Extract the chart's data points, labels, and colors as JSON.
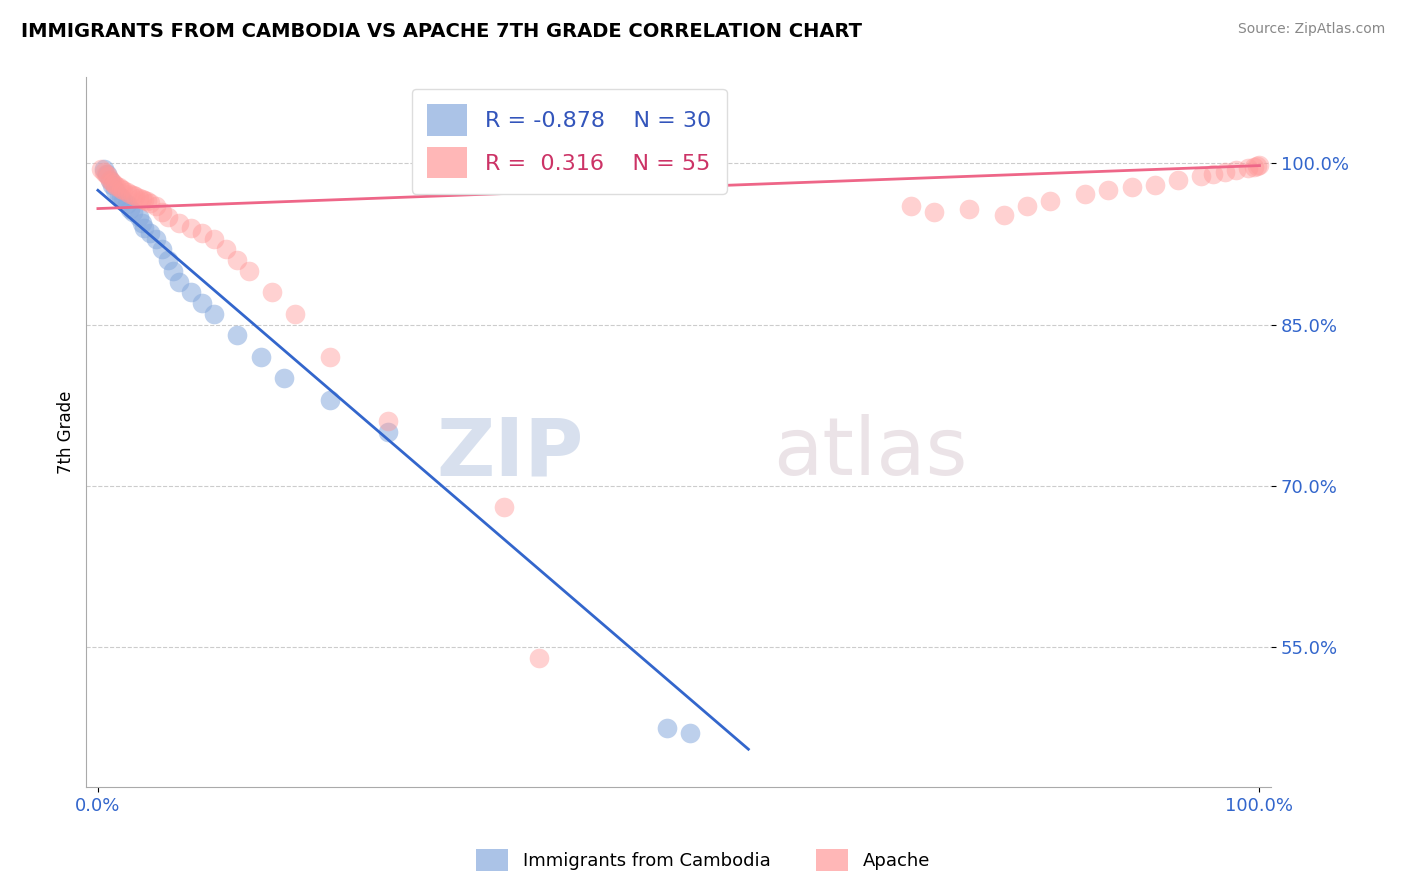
{
  "title": "IMMIGRANTS FROM CAMBODIA VS APACHE 7TH GRADE CORRELATION CHART",
  "source_text": "Source: ZipAtlas.com",
  "ylabel": "7th Grade",
  "xlim": [
    -0.01,
    1.01
  ],
  "ylim": [
    0.42,
    1.08
  ],
  "yticks": [
    0.55,
    0.7,
    0.85,
    1.0
  ],
  "ytick_labels": [
    "55.0%",
    "70.0%",
    "85.0%",
    "100.0%"
  ],
  "xticks": [
    0.0,
    1.0
  ],
  "xtick_labels": [
    "0.0%",
    "100.0%"
  ],
  "blue_label": "Immigrants from Cambodia",
  "pink_label": "Apache",
  "blue_R": -0.878,
  "blue_N": 30,
  "pink_R": 0.316,
  "pink_N": 55,
  "blue_color": "#88AADD",
  "pink_color": "#FF9999",
  "blue_line_color": "#3366CC",
  "pink_line_color": "#EE6688",
  "watermark_zip": "ZIP",
  "watermark_atlas": "atlas",
  "blue_scatter_x": [
    0.005,
    0.008,
    0.01,
    0.012,
    0.015,
    0.018,
    0.02,
    0.022,
    0.025,
    0.028,
    0.03,
    0.035,
    0.038,
    0.04,
    0.045,
    0.05,
    0.055,
    0.06,
    0.065,
    0.07,
    0.08,
    0.09,
    0.1,
    0.12,
    0.14,
    0.16,
    0.2,
    0.25,
    0.49,
    0.51
  ],
  "blue_scatter_y": [
    0.995,
    0.99,
    0.985,
    0.98,
    0.975,
    0.97,
    0.968,
    0.965,
    0.962,
    0.958,
    0.955,
    0.95,
    0.945,
    0.94,
    0.935,
    0.93,
    0.92,
    0.91,
    0.9,
    0.89,
    0.88,
    0.87,
    0.86,
    0.84,
    0.82,
    0.8,
    0.78,
    0.75,
    0.475,
    0.47
  ],
  "pink_scatter_x": [
    0.003,
    0.005,
    0.007,
    0.009,
    0.01,
    0.012,
    0.014,
    0.016,
    0.018,
    0.02,
    0.022,
    0.025,
    0.028,
    0.03,
    0.032,
    0.035,
    0.038,
    0.04,
    0.042,
    0.045,
    0.05,
    0.055,
    0.06,
    0.07,
    0.08,
    0.09,
    0.1,
    0.11,
    0.12,
    0.13,
    0.15,
    0.17,
    0.2,
    0.25,
    0.35,
    0.38,
    0.7,
    0.72,
    0.75,
    0.78,
    0.8,
    0.82,
    0.85,
    0.87,
    0.89,
    0.91,
    0.93,
    0.95,
    0.96,
    0.97,
    0.98,
    0.99,
    0.995,
    0.998,
    1.0
  ],
  "pink_scatter_y": [
    0.995,
    0.992,
    0.99,
    0.988,
    0.985,
    0.983,
    0.981,
    0.979,
    0.978,
    0.976,
    0.975,
    0.973,
    0.972,
    0.971,
    0.97,
    0.968,
    0.967,
    0.966,
    0.965,
    0.963,
    0.96,
    0.955,
    0.95,
    0.945,
    0.94,
    0.935,
    0.93,
    0.92,
    0.91,
    0.9,
    0.88,
    0.86,
    0.82,
    0.76,
    0.68,
    0.54,
    0.96,
    0.955,
    0.958,
    0.952,
    0.96,
    0.965,
    0.972,
    0.975,
    0.978,
    0.98,
    0.985,
    0.988,
    0.99,
    0.992,
    0.994,
    0.996,
    0.997,
    0.998,
    0.999
  ],
  "blue_line_x": [
    0.0,
    0.56
  ],
  "blue_line_y": [
    0.975,
    0.455
  ],
  "pink_line_x": [
    0.0,
    1.0
  ],
  "pink_line_y": [
    0.958,
    0.998
  ]
}
